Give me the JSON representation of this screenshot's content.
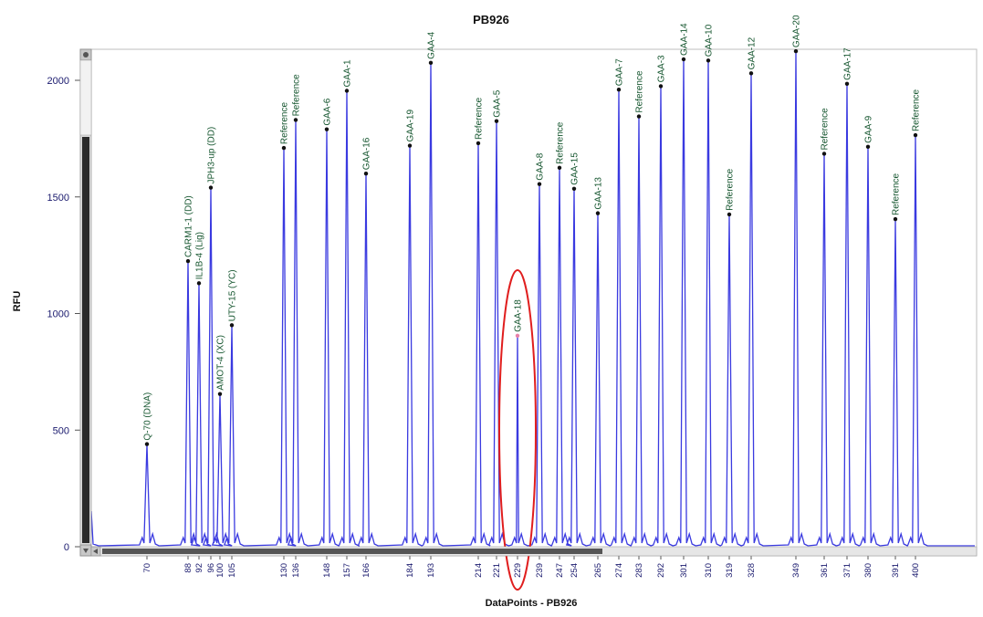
{
  "chart_data": {
    "type": "line",
    "title": "PB926",
    "xlabel": "DataPoints - PB926",
    "ylabel": "RFU",
    "yticks": [
      0,
      500,
      1000,
      1500,
      2000
    ],
    "ylim": [
      0,
      2150
    ],
    "xticks": [
      70,
      88,
      92,
      96,
      100,
      105,
      130,
      136,
      148,
      157,
      166,
      184,
      193,
      214,
      221,
      229,
      239,
      247,
      254,
      265,
      274,
      283,
      292,
      301,
      310,
      319,
      328,
      349,
      361,
      371,
      380,
      391,
      400
    ],
    "grid": false,
    "series_color": "#3a3ae0",
    "highlight_color": "#e01e1e",
    "peaks": [
      {
        "label": "Q-70 (DNA)",
        "x": 70,
        "y": 440
      },
      {
        "label": "CARM1-1 (DD)",
        "x": 88,
        "y": 1225
      },
      {
        "label": "IL1B-4 (Lig)",
        "x": 92,
        "y": 1130
      },
      {
        "label": "JPH3-up (DD)",
        "x": 96,
        "y": 1540
      },
      {
        "label": "AMOT-4 (XC)",
        "x": 100,
        "y": 655
      },
      {
        "label": "UTY-15 (YC)",
        "x": 105,
        "y": 950
      },
      {
        "label": "Reference",
        "x": 130,
        "y": 1710
      },
      {
        "label": "Reference",
        "x": 136,
        "y": 1830
      },
      {
        "label": "GAA-6",
        "x": 148,
        "y": 1790
      },
      {
        "label": "GAA-1",
        "x": 157,
        "y": 1955
      },
      {
        "label": "GAA-16",
        "x": 166,
        "y": 1600
      },
      {
        "label": "GAA-19",
        "x": 184,
        "y": 1720
      },
      {
        "label": "GAA-4",
        "x": 193,
        "y": 2075
      },
      {
        "label": "Reference",
        "x": 214,
        "y": 1730
      },
      {
        "label": "GAA-5",
        "x": 221,
        "y": 1825
      },
      {
        "label": "GAA-18",
        "x": 229,
        "y": 905,
        "highlighted": true
      },
      {
        "label": "GAA-8",
        "x": 239,
        "y": 1555
      },
      {
        "label": "Reference",
        "x": 247,
        "y": 1625
      },
      {
        "label": "GAA-15",
        "x": 254,
        "y": 1535
      },
      {
        "label": "GAA-13",
        "x": 265,
        "y": 1430
      },
      {
        "label": "GAA-7",
        "x": 274,
        "y": 1960
      },
      {
        "label": "Reference",
        "x": 283,
        "y": 1845
      },
      {
        "label": "GAA-3",
        "x": 292,
        "y": 1975
      },
      {
        "label": "GAA-14",
        "x": 301,
        "y": 2090
      },
      {
        "label": "GAA-10",
        "x": 310,
        "y": 2085
      },
      {
        "label": "Reference",
        "x": 319,
        "y": 1425
      },
      {
        "label": "GAA-12",
        "x": 328,
        "y": 2030
      },
      {
        "label": "GAA-20",
        "x": 349,
        "y": 2125
      },
      {
        "label": "Reference",
        "x": 361,
        "y": 1685
      },
      {
        "label": "GAA-17",
        "x": 371,
        "y": 1985
      },
      {
        "label": "GAA-9",
        "x": 380,
        "y": 1715
      },
      {
        "label": "Reference",
        "x": 391,
        "y": 1405
      },
      {
        "label": "Reference",
        "x": 400,
        "y": 1765
      }
    ]
  }
}
